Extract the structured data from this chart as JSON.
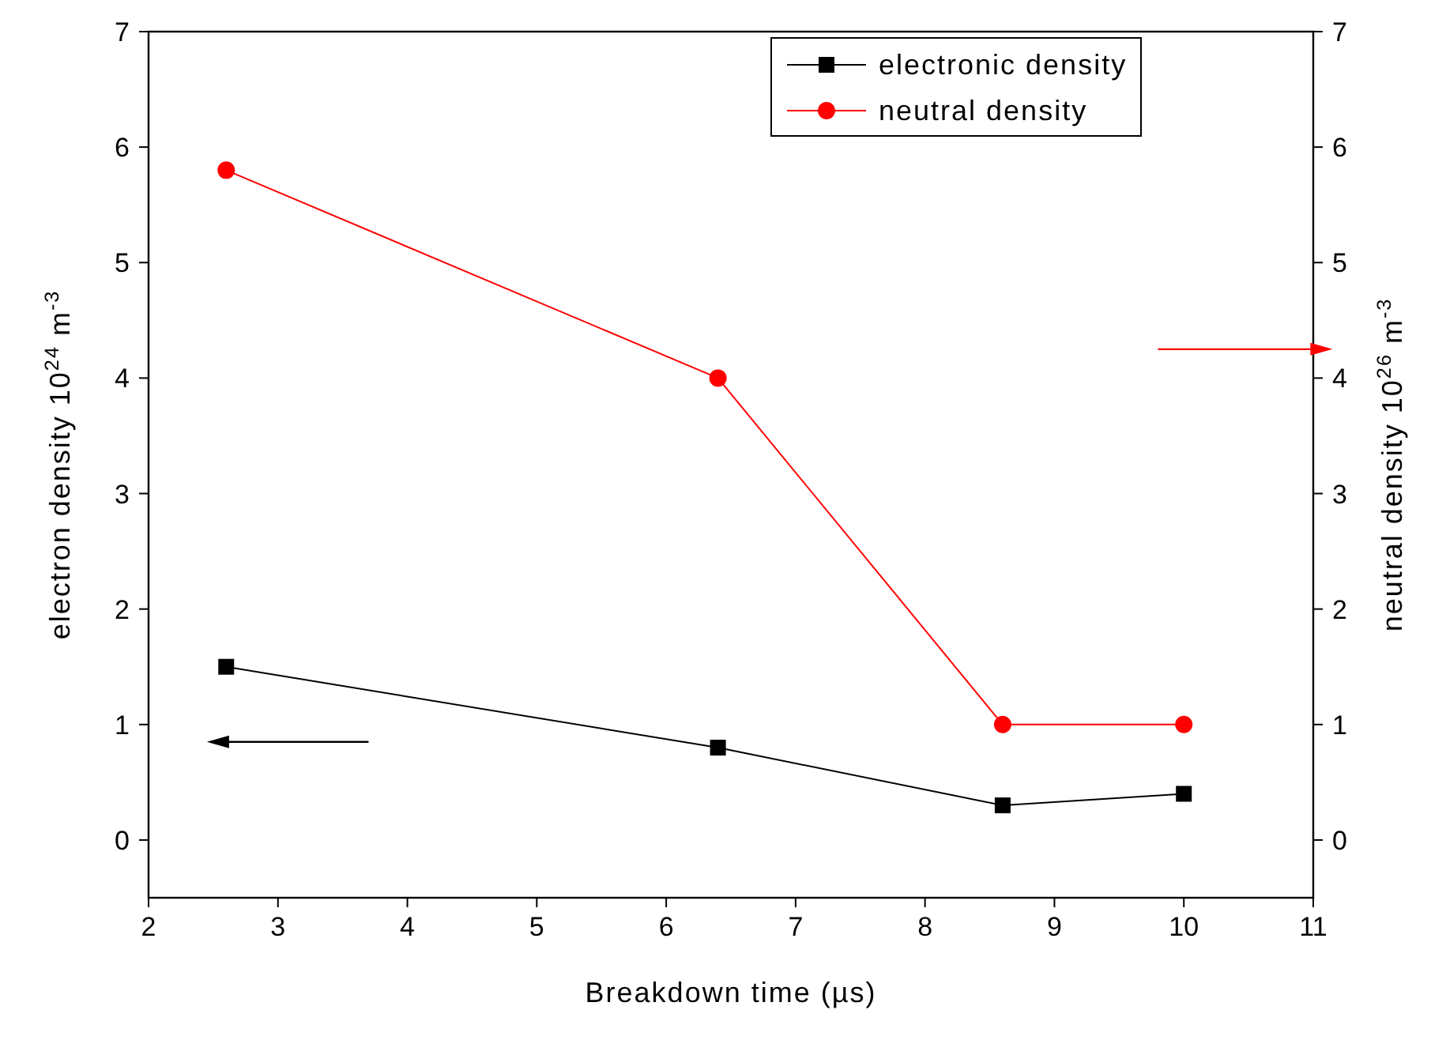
{
  "chart_data": {
    "type": "line",
    "xlabel": "Breakdown time (µs)",
    "ylabel": "electron density 10$^{24}$ m$^{-3}$",
    "y2label": "neutral density 10$^{26}$ m$^{-3}$",
    "x": [
      2.6,
      6.4,
      8.6,
      10.0
    ],
    "series": [
      {
        "name": "electronic density",
        "color": "#000000",
        "marker": "square",
        "values": [
          1.5,
          0.8,
          0.3,
          0.4
        ]
      },
      {
        "name": "neutral density",
        "color": "#ff0000",
        "marker": "circle",
        "axis": "y2",
        "values": [
          5.8,
          4.0,
          1.0,
          1.0
        ]
      }
    ],
    "xlim": [
      2,
      11
    ],
    "xticks": [
      2,
      3,
      4,
      5,
      6,
      7,
      8,
      9,
      10,
      11
    ],
    "ylim": [
      -0.5,
      7
    ],
    "yticks": [
      0,
      1,
      2,
      3,
      4,
      5,
      6,
      7
    ],
    "y2lim": [
      -0.5,
      7
    ],
    "y2ticks": [
      0,
      1,
      2,
      3,
      4,
      5,
      6,
      7
    ],
    "legend": "top right",
    "grid": false,
    "line_style": "solid"
  }
}
